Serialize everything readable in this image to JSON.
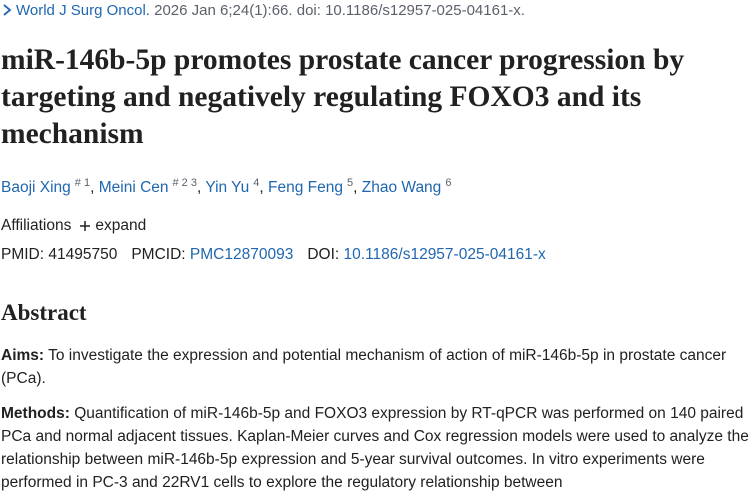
{
  "citation": {
    "journal": "World J Surg Oncol.",
    "details": "2026 Jan 6;24(1):66. doi: 10.1186/s12957-025-04161-x."
  },
  "title": "miR-146b-5p promotes prostate cancer progression by targeting and negatively regulating FOXO3 and its mechanism",
  "authors": {
    "separator": ",",
    "list": [
      {
        "name": "Baoji Xing",
        "sup": "# 1"
      },
      {
        "name": "Meini Cen",
        "sup": "# 2 3"
      },
      {
        "name": "Yin Yu",
        "sup": "4"
      },
      {
        "name": "Feng Feng",
        "sup": "5"
      },
      {
        "name": "Zhao Wang",
        "sup": "6"
      }
    ]
  },
  "affiliations": {
    "label": "Affiliations",
    "toggle": "expand"
  },
  "identifiers": [
    {
      "label": "PMID:",
      "value": "41495750"
    },
    {
      "label": "PMCID:",
      "value": "PMC12870093"
    },
    {
      "label": "DOI:",
      "value": "10.1186/s12957-025-04161-x"
    }
  ],
  "abstract": {
    "heading": "Abstract",
    "sections": [
      {
        "label": "Aims:",
        "text": "To investigate the expression and potential mechanism of action of miR-146b-5p in prostate cancer (PCa)."
      },
      {
        "label": "Methods:",
        "text": "Quantification of miR-146b-5p and FOXO3 expression by RT-qPCR was performed on 140 paired PCa and normal adjacent tissues. Kaplan-Meier curves and Cox regression models were used to analyze the relationship between miR-146b-5p expression and 5-year survival outcomes. In vitro experiments were performed in PC-3 and 22RV1 cells to explore the regulatory relationship between"
      }
    ]
  }
}
